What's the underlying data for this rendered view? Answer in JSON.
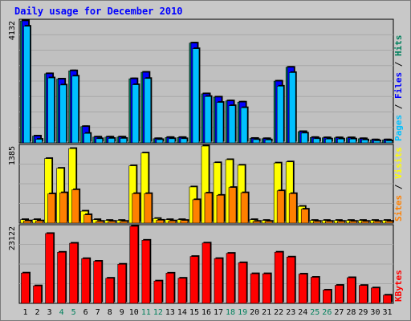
{
  "chart_data": {
    "type": "bar",
    "title": "Daily usage for December 2010",
    "days": [
      "1",
      "2",
      "3",
      "4",
      "5",
      "6",
      "7",
      "8",
      "9",
      "10",
      "11",
      "12",
      "13",
      "14",
      "15",
      "16",
      "17",
      "18",
      "19",
      "20",
      "21",
      "22",
      "23",
      "24",
      "25",
      "26",
      "27",
      "28",
      "29",
      "30",
      "31"
    ],
    "weekend_days": [
      "4",
      "5",
      "11",
      "12",
      "18",
      "19",
      "25",
      "26"
    ],
    "panels": [
      {
        "name": "hits_files_pages",
        "ymax_label": "4132",
        "ymax": 4132,
        "right_label": [
          {
            "text": "Pages",
            "color": "#00c0ff"
          },
          {
            "text": " / ",
            "color": "#000000"
          },
          {
            "text": "Files",
            "color": "#0000ff"
          },
          {
            "text": " / ",
            "color": "#000000"
          },
          {
            "text": "Hits",
            "color": "#00805c"
          }
        ],
        "series": [
          {
            "name": "Hits",
            "color": "#00805c",
            "values": [
              4132,
              230,
              2340,
              2160,
              2440,
              550,
              195,
              195,
              195,
              2170,
              2390,
              140,
              180,
              180,
              3380,
              1660,
              1550,
              1420,
              1380,
              150,
              140,
              2090,
              2560,
              380,
              180,
              170,
              170,
              170,
              140,
              100,
              100
            ]
          },
          {
            "name": "Files",
            "color": "#0000ff",
            "values": [
              4132,
              230,
              2340,
              2160,
              2440,
              550,
              195,
              195,
              195,
              2170,
              2390,
              140,
              180,
              180,
              3380,
              1660,
              1550,
              1420,
              1380,
              150,
              140,
              2090,
              2560,
              380,
              180,
              170,
              170,
              170,
              140,
              100,
              100
            ]
          },
          {
            "name": "Pages",
            "color": "#00c0ff",
            "values": [
              3950,
              120,
              2200,
              1960,
              2260,
              320,
              140,
              150,
              150,
              1970,
              2180,
              110,
              140,
              140,
              3190,
              1570,
              1370,
              1260,
              1190,
              110,
              100,
              1920,
              2380,
              330,
              140,
              130,
              130,
              130,
              100,
              70,
              70
            ]
          }
        ]
      },
      {
        "name": "visits_sites",
        "ymax_label": "1385",
        "ymax": 1385,
        "right_label": [
          {
            "text": "Sites",
            "color": "#ff8000"
          },
          {
            "text": " / ",
            "color": "#000000"
          },
          {
            "text": "Visits",
            "color": "#ffff00"
          }
        ],
        "series": [
          {
            "name": "Visits",
            "color": "#ffff00",
            "values": [
              62,
              62,
              1160,
              985,
              1340,
              215,
              62,
              48,
              48,
              1030,
              1260,
              82,
              62,
              62,
              650,
              1385,
              1085,
              1140,
              1040,
              62,
              48,
              1080,
              1100,
              300,
              48,
              48,
              48,
              48,
              48,
              48,
              48
            ]
          },
          {
            "name": "Sites",
            "color": "#ff8000",
            "values": [
              40,
              40,
              525,
              545,
              600,
              150,
              32,
              32,
              32,
              530,
              530,
              52,
              40,
              48,
              420,
              540,
              500,
              640,
              545,
              32,
              32,
              580,
              530,
              250,
              32,
              32,
              32,
              32,
              32,
              32,
              32
            ]
          }
        ]
      },
      {
        "name": "kbytes",
        "ymax_label": "23122",
        "ymax": 23122,
        "right_label": [
          {
            "text": "KBytes",
            "color": "#ff0000"
          }
        ],
        "series": [
          {
            "name": "KBytes",
            "color": "#ff0000",
            "values": [
              9100,
              5250,
              20960,
              15340,
              18040,
              13420,
              12640,
              7540,
              11740,
              23122,
              18940,
              6700,
              9060,
              7540,
              14060,
              18100,
              13440,
              15020,
              12180,
              8880,
              8880,
              15360,
              13900,
              8780,
              7820,
              3980,
              5400,
              7700,
              5370,
              4620,
              2450
            ]
          }
        ]
      }
    ],
    "grid": true
  }
}
